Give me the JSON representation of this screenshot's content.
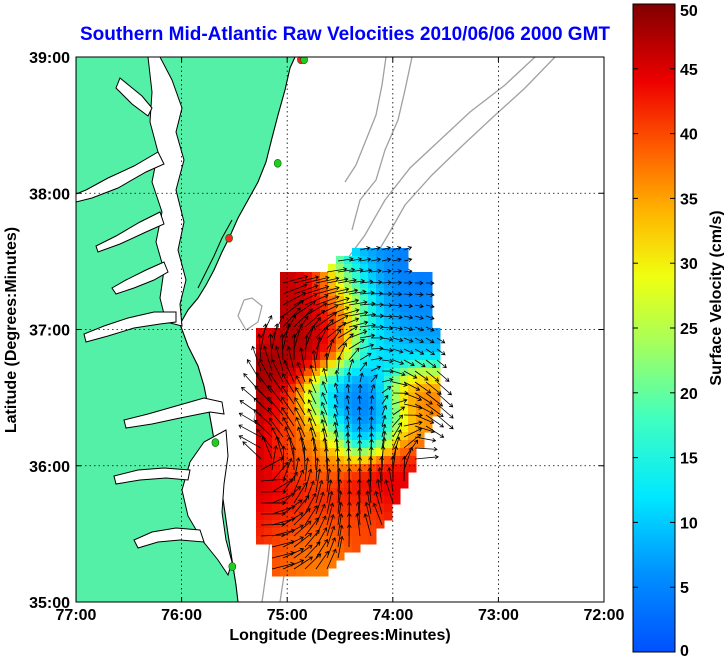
{
  "title": "Southern Mid-Atlantic Raw Velocities 2010/06/06 2000 GMT",
  "chart_data": {
    "type": "heatmap",
    "title": "Southern Mid-Atlantic Raw Velocities 2010/06/06 2000 GMT",
    "xlabel": "Longitude (Degrees:Minutes)",
    "ylabel": "Latitude (Degrees:Minutes)",
    "x_ticks": [
      "77:00",
      "76:00",
      "75:00",
      "74:00",
      "73:00",
      "72:00"
    ],
    "y_ticks": [
      "39:00",
      "38:00",
      "37:00",
      "36:00",
      "35:00"
    ],
    "xlim": [
      -77,
      -72
    ],
    "ylim": [
      35,
      39
    ],
    "grid": true,
    "colorbar": {
      "label": "Surface Velocity (cm/s)",
      "ticks": [
        "50",
        "45",
        "40",
        "35",
        "30",
        "25",
        "20",
        "15",
        "10",
        "5",
        "0"
      ],
      "range": [
        0,
        50
      ],
      "colormap": "jet"
    },
    "colors": {
      "land": "#55f0a8",
      "coast": "#000000",
      "bathymetry": "#a0a0a0",
      "station_green": "#22cc22",
      "station_red": "#ff2222"
    }
  }
}
